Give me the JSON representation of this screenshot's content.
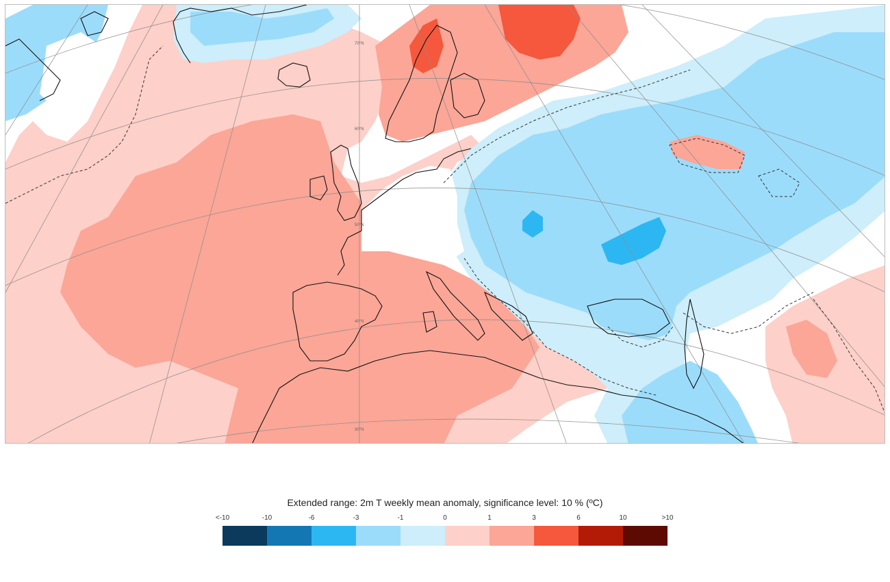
{
  "map": {
    "latitude_labels": [
      "70°N",
      "60°N",
      "50°N",
      "40°N",
      "30°N"
    ],
    "background_color": "#ffffff",
    "coastline_color": "#111111",
    "graticule_color": "#8c8c8c"
  },
  "legend": {
    "title": "Extended range: 2m T weekly mean anomaly, significance level: 10 % (ºC)",
    "tick_labels": [
      "<-10",
      "-10",
      "-6",
      "-3",
      "-1",
      "0",
      "1",
      "3",
      "6",
      "10",
      ">10"
    ],
    "colors": [
      "#0b3a5c",
      "#1377b4",
      "#2db7f2",
      "#9cdcfb",
      "#cdeefa",
      "#fdd0c9",
      "#fba697",
      "#f5583c",
      "#b31b07",
      "#5d0b02"
    ]
  }
}
